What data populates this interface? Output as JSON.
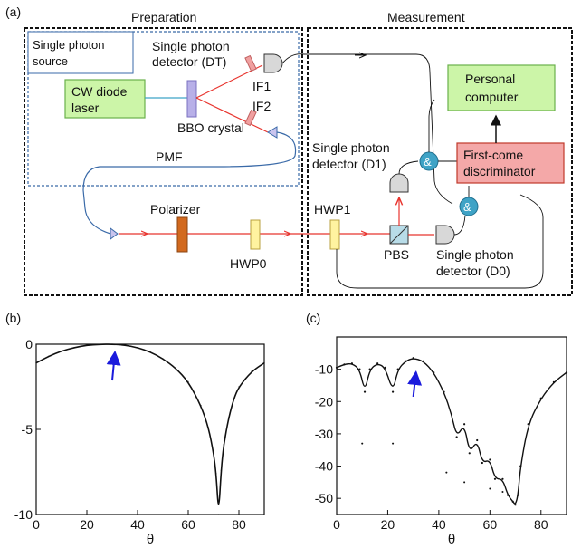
{
  "panel_labels": {
    "a": "(a)",
    "b": "(b)",
    "c": "(c)"
  },
  "setup": {
    "section_preparation": "Preparation",
    "section_measurement": "Measurement",
    "source_box": "Single photon source",
    "source_line1": "Single photon",
    "source_line2": "source",
    "laser_line1": "CW diode",
    "laser_line2": "laser",
    "crystal": "BBO crystal",
    "det_dt_line1": "Single photon",
    "det_dt_line2": "detector (DT)",
    "if1": "IF1",
    "if2": "IF2",
    "pmf": "PMF",
    "polarizer": "Polarizer",
    "hwp0": "HWP0",
    "hwp1": "HWP1",
    "pbs": "PBS",
    "det_d1_line1": "Single photon",
    "det_d1_line2": "detector (D1)",
    "det_d0_line1": "Single photon",
    "det_d0_line2": "detector (D0)",
    "pc_line1": "Personal",
    "pc_line2": "computer",
    "fcd_line1": "First-come",
    "fcd_line2": "discriminator",
    "and_gate": "&",
    "colors": {
      "laser_box": "#ccf5a8",
      "pc_box": "#ccf5a8",
      "fcd_box": "#f4a8a8",
      "beam": "#e8342e",
      "and_gate": "#3fa3c6",
      "polarizer": "#d2691e",
      "hwp": "#fff3a0"
    }
  },
  "chart_data": [
    {
      "type": "line",
      "panel": "(b)",
      "xlabel": "θ",
      "ylabel": "",
      "xlim": [
        0,
        90
      ],
      "ylim": [
        -10,
        0
      ],
      "xticks": [
        "0",
        "20",
        "40",
        "60",
        "80"
      ],
      "yticks": [
        "0",
        "-5",
        "-10"
      ],
      "x": [
        0,
        5,
        10,
        15,
        20,
        25,
        30,
        35,
        40,
        45,
        50,
        55,
        60,
        65,
        68,
        70,
        71,
        72,
        73,
        74,
        76,
        78,
        80,
        85,
        90
      ],
      "y": [
        -1.1,
        -0.7,
        -0.4,
        -0.2,
        -0.06,
        -0.01,
        0,
        -0.05,
        -0.2,
        -0.45,
        -0.85,
        -1.4,
        -2.2,
        -3.6,
        -4.9,
        -6.4,
        -7.6,
        -10,
        -7.4,
        -5.9,
        -4.3,
        -3.2,
        -2.5,
        -1.6,
        -1.1
      ],
      "arrow_x": 30
    },
    {
      "type": "scatter",
      "panel": "(c)",
      "xlabel": "θ",
      "ylabel": "",
      "xlim": [
        0,
        90
      ],
      "ylim": [
        -55,
        0
      ],
      "xticks": [
        "0",
        "20",
        "40",
        "60",
        "80"
      ],
      "yticks": [
        "-10",
        "-20",
        "-30",
        "-40",
        "-50"
      ],
      "x": [
        0,
        3,
        6,
        9,
        11,
        13,
        16,
        19,
        22,
        24,
        27,
        30,
        34,
        38,
        42,
        45,
        47,
        50,
        52,
        55,
        57,
        60,
        62,
        65,
        67,
        69,
        70,
        71,
        72,
        75,
        80,
        85,
        90
      ],
      "y": [
        -9.5,
        -8.5,
        -8.2,
        -10,
        -17,
        -10,
        -8.2,
        -9.5,
        -17,
        -10,
        -7.5,
        -6.5,
        -7.5,
        -11,
        -17,
        -24,
        -31,
        -27,
        -36,
        -32,
        -39,
        -38,
        -44,
        -44,
        -49,
        -51,
        -52,
        -49,
        -40,
        -27,
        -19,
        -14,
        -11
      ],
      "outliers": [
        {
          "x": 10,
          "y": -33
        },
        {
          "x": 22,
          "y": -33
        },
        {
          "x": 50,
          "y": -45
        },
        {
          "x": 43,
          "y": -42
        },
        {
          "x": 65,
          "y": -48
        },
        {
          "x": 60,
          "y": -47
        }
      ],
      "arrow_x": 30
    }
  ]
}
